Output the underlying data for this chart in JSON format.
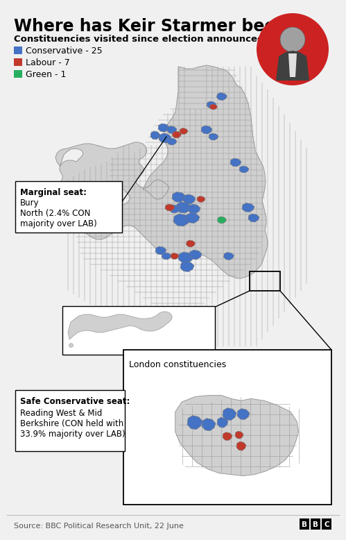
{
  "title": "Where has Keir Starmer been?",
  "subtitle": "Constituencies visited since election announced: 33",
  "legend_items": [
    {
      "label": "Conservative - 25",
      "color": "#4472C4"
    },
    {
      "label": "Labour - 7",
      "color": "#C0392B"
    },
    {
      "label": "Green - 1",
      "color": "#27AE60"
    }
  ],
  "annotation1_bold": "Marginal seat:",
  "annotation1_rest": " Bury\nNorth (2.4% CON\nmajority over LAB)",
  "annotation2_bold": "Safe Conservative seat:",
  "annotation2_rest": "\nReading West & Mid\nBerkshire (CON held with\n33.9% majority over LAB)",
  "london_label": "London constituencies",
  "source_text": "Source: BBC Political Research Unit, 22 June",
  "bg_color": "#F0F0F0",
  "map_color": "#D0D0D0",
  "map_border": "#888888",
  "map_border_lw": 0.5,
  "conservative_color": "#4472C4",
  "labour_color": "#C0392B",
  "green_color": "#27AE60",
  "white": "#FFFFFF"
}
